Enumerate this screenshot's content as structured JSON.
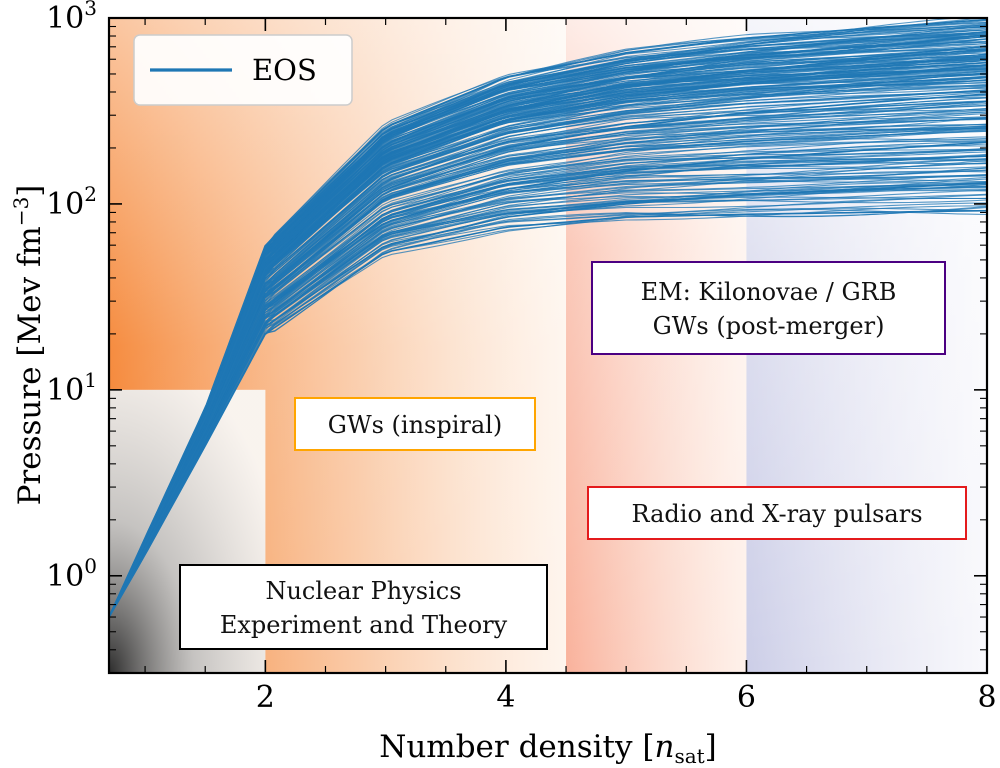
{
  "chart_data": {
    "type": "line",
    "xlabel": "Number density [n_sat]",
    "xlabel_parts": {
      "main": "Number density [",
      "var": "n",
      "sub": "sat",
      "end": "]"
    },
    "ylabel": "Pressure [Mev fm^-3]",
    "ylabel_parts": {
      "main": "Pressure [Mev fm",
      "sup": "−3",
      "end": "]"
    },
    "xlim": [
      0.7,
      8
    ],
    "ylim": [
      0.3,
      1000
    ],
    "yscale": "log",
    "x_ticks": [
      2,
      4,
      6,
      8
    ],
    "x_tick_labels": [
      "2",
      "4",
      "6",
      "8"
    ],
    "y_ticks": [
      1,
      10,
      100,
      1000
    ],
    "y_tick_labels": [
      {
        "base": "10",
        "exp": "0"
      },
      {
        "base": "10",
        "exp": "1"
      },
      {
        "base": "10",
        "exp": "2"
      },
      {
        "base": "10",
        "exp": "3"
      }
    ],
    "legend": {
      "placement": "top-left",
      "label": "EOS",
      "color": "#1f77b4"
    },
    "series_color": "#1f77b4",
    "series": [
      {
        "x": [
          0.7,
          1.0,
          1.5,
          2.0,
          3.0,
          4.0,
          5.0,
          6.0,
          7.0,
          8.0
        ],
        "y": [
          0.6,
          1.6,
          8,
          60,
          260,
          480,
          650,
          780,
          880,
          980
        ]
      },
      {
        "x": [
          0.7,
          1.0,
          1.5,
          2.0,
          3.0,
          4.0,
          5.0,
          6.0,
          7.0,
          8.0
        ],
        "y": [
          0.6,
          1.5,
          7,
          45,
          180,
          320,
          430,
          520,
          600,
          680
        ]
      },
      {
        "x": [
          0.7,
          1.0,
          1.5,
          2.0,
          3.0,
          4.0,
          5.0,
          6.0,
          7.0,
          8.0
        ],
        "y": [
          0.6,
          1.4,
          6,
          35,
          120,
          200,
          260,
          310,
          350,
          390
        ]
      },
      {
        "x": [
          0.7,
          1.0,
          1.5,
          2.0,
          3.0,
          4.0,
          5.0,
          6.0,
          7.0,
          8.0
        ],
        "y": [
          0.6,
          1.4,
          6,
          28,
          80,
          120,
          150,
          175,
          195,
          215
        ]
      },
      {
        "x": [
          0.7,
          1.0,
          1.5,
          2.0,
          3.0,
          4.0,
          5.0,
          6.0,
          7.0,
          8.0
        ],
        "y": [
          0.6,
          1.3,
          5.5,
          22,
          60,
          85,
          100,
          112,
          120,
          130
        ]
      },
      {
        "x": [
          0.7,
          1.0,
          1.5,
          2.0,
          3.0,
          4.0,
          5.0,
          6.0,
          7.0,
          8.0
        ],
        "y": [
          0.6,
          1.3,
          5,
          20,
          55,
          75,
          85,
          88,
          90,
          92
        ]
      }
    ],
    "regions": [
      {
        "label": "Nuclear Physics Experiment and Theory",
        "lines": [
          "Nuclear Physics",
          "Experiment and Theory"
        ],
        "border_color": "#000000",
        "x_range": [
          0.7,
          2
        ],
        "y_range": [
          0.3,
          10
        ]
      },
      {
        "label": "GWs (inspiral)",
        "lines": [
          "GWs (inspiral)"
        ],
        "border_color": "#ffa500",
        "x_range": [
          0.7,
          4.5
        ],
        "y_range": [
          0.3,
          1000
        ]
      },
      {
        "label": "Radio and X-ray pulsars",
        "lines": [
          "Radio and X-ray pulsars"
        ],
        "border_color": "#e41a1c",
        "x_range": [
          4.5,
          6
        ],
        "y_range": [
          0.3,
          1000
        ]
      },
      {
        "label": "EM: Kilonovae / GRB GWs (post-merger)",
        "lines": [
          "EM: Kilonovae / GRB",
          "GWs (post-merger)"
        ],
        "border_color": "#4b0082",
        "x_range": [
          6,
          8
        ],
        "y_range": [
          0.3,
          1000
        ]
      }
    ],
    "grid": false
  }
}
